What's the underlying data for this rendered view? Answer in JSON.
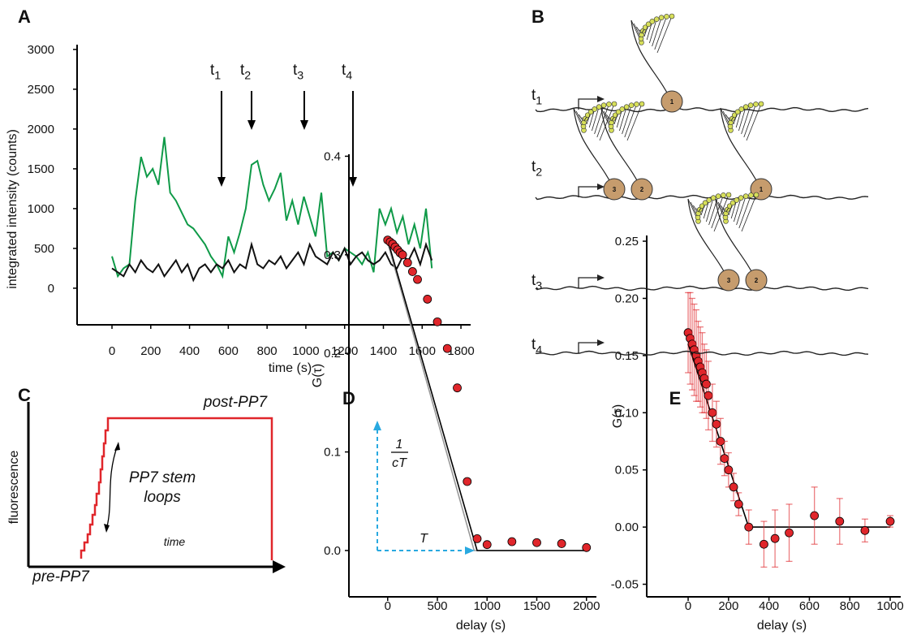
{
  "chart_data": [
    {
      "type": "line",
      "panel": "A",
      "x_label": "time (s)",
      "y_label": "integrated intensity (counts)",
      "xlim": [
        -180,
        1850
      ],
      "ylim": [
        -460,
        3060
      ],
      "xticks": [
        0,
        200,
        400,
        600,
        800,
        1000,
        1200,
        1400,
        1600,
        1800
      ],
      "yticks": [
        0,
        500,
        1000,
        1500,
        2000,
        2500,
        3000
      ],
      "x": [
        0,
        30,
        60,
        90,
        120,
        150,
        180,
        210,
        240,
        270,
        300,
        330,
        360,
        390,
        420,
        450,
        480,
        510,
        540,
        570,
        600,
        630,
        660,
        690,
        720,
        750,
        780,
        810,
        840,
        870,
        900,
        930,
        960,
        990,
        1020,
        1050,
        1080,
        1110,
        1140,
        1170,
        1200,
        1230,
        1260,
        1290,
        1320,
        1350,
        1380,
        1410,
        1440,
        1470,
        1500,
        1530,
        1560,
        1590,
        1620,
        1650
      ],
      "series": [
        {
          "color": "#0f9a48",
          "values": [
            400,
            150,
            250,
            300,
            1100,
            1650,
            1400,
            1500,
            1300,
            1900,
            1200,
            1100,
            950,
            800,
            750,
            650,
            550,
            400,
            300,
            150,
            650,
            450,
            700,
            1000,
            1550,
            1600,
            1300,
            1100,
            1250,
            1450,
            850,
            1100,
            800,
            1150,
            900,
            650,
            1200,
            400,
            450,
            350,
            500,
            450,
            400,
            300,
            450,
            200,
            1000,
            800,
            1000,
            700,
            900,
            550,
            800,
            500,
            1000,
            250
          ]
        },
        {
          "color": "#111111",
          "values": [
            250,
            200,
            150,
            300,
            200,
            350,
            250,
            200,
            300,
            150,
            250,
            350,
            200,
            300,
            100,
            250,
            300,
            200,
            300,
            250,
            350,
            200,
            300,
            250,
            550,
            300,
            250,
            350,
            300,
            400,
            250,
            350,
            450,
            300,
            550,
            400,
            350,
            300,
            450,
            350,
            500,
            300,
            400,
            450,
            350,
            300,
            350,
            450,
            300,
            250,
            400,
            350,
            500,
            300,
            550,
            350
          ]
        }
      ],
      "arrows": [
        {
          "label": "t",
          "subscript": "1",
          "x": 565
        },
        {
          "label": "t",
          "subscript": "2",
          "x": 720
        },
        {
          "label": "t",
          "subscript": "3",
          "x": 992
        },
        {
          "label": "t",
          "subscript": "4",
          "x": 1243
        }
      ]
    },
    {
      "type": "scatter",
      "panel": "D",
      "x_label": "delay (s)",
      "y_label": "G(τ)",
      "xlim": [
        -390,
        2100
      ],
      "ylim": [
        -0.047,
        0.402
      ],
      "xticks": [
        0,
        500,
        1000,
        1500,
        2000
      ],
      "yticks": [
        {
          "value": 0,
          "label": "0.0"
        },
        0.1,
        0.2,
        0.3,
        0.4
      ],
      "series": [
        {
          "mode": "lines",
          "color": "#999999",
          "x": [
            0,
            870,
            2000
          ],
          "values": [
            0.312,
            0,
            0
          ]
        },
        {
          "mode": "lines",
          "color": "#000000",
          "x": [
            0,
            900,
            2000
          ],
          "values": [
            0.315,
            0,
            0
          ]
        },
        {
          "mode": "markers",
          "color": "#e0262b",
          "x": [
            0,
            25,
            50,
            75,
            100,
            125,
            150,
            200,
            250,
            300,
            400,
            500,
            600,
            700,
            800,
            900,
            1000,
            1250,
            1500,
            1750,
            2000
          ],
          "values": [
            0.315,
            0.313,
            0.311,
            0.308,
            0.305,
            0.302,
            0.3,
            0.292,
            0.283,
            0.275,
            0.255,
            0.232,
            0.205,
            0.165,
            0.07,
            0.012,
            0.006,
            0.009,
            0.008,
            0.007,
            0.003
          ]
        }
      ],
      "annotations": {
        "slope_numerator": "1",
        "slope_denominator": "cT",
        "run": "T"
      }
    },
    {
      "type": "scatter",
      "panel": "E",
      "x_label": "delay (s)",
      "y_label": "G(τ)",
      "xlim": [
        -205,
        1052
      ],
      "ylim": [
        -0.061,
        0.255
      ],
      "xticks": [
        0,
        200,
        400,
        600,
        800,
        1000
      ],
      "yticks": [
        {
          "value": -0.05,
          "label": "-0.05"
        },
        {
          "value": 0,
          "label": "0.00"
        },
        0.05,
        {
          "value": 0.1,
          "label": "0.10"
        },
        0.15,
        {
          "value": 0.2,
          "label": "0.20"
        },
        0.25
      ],
      "series": [
        {
          "mode": "lines",
          "color": "#000000",
          "x": [
            0,
            300,
            1000
          ],
          "values": [
            0.16,
            0,
            0
          ]
        },
        {
          "mode": "markers",
          "color": "#e0262b",
          "x": [
            0,
            10,
            20,
            30,
            40,
            50,
            60,
            70,
            80,
            90,
            100,
            120,
            140,
            160,
            180,
            200,
            225,
            250,
            300,
            375,
            430,
            500,
            625,
            750,
            875,
            1000
          ],
          "values": [
            0.17,
            0.165,
            0.16,
            0.155,
            0.15,
            0.145,
            0.14,
            0.135,
            0.13,
            0.125,
            0.115,
            0.1,
            0.09,
            0.075,
            0.06,
            0.05,
            0.035,
            0.02,
            0.0,
            -0.015,
            -0.01,
            -0.005,
            0.01,
            0.005,
            -0.003,
            0.005
          ],
          "errors": [
            0.035,
            0.04,
            0.04,
            0.04,
            0.04,
            0.035,
            0.035,
            0.035,
            0.03,
            0.03,
            0.03,
            0.025,
            0.02,
            0.02,
            0.015,
            0.015,
            0.012,
            0.01,
            0.015,
            0.02,
            0.025,
            0.025,
            0.025,
            0.02,
            0.01,
            0.005
          ]
        }
      ]
    }
  ],
  "panel_b": {
    "letter": "B",
    "rows": [
      {
        "label": "t",
        "subscript": "1",
        "ribosomes": [
          "1"
        ]
      },
      {
        "label": "t",
        "subscript": "2",
        "ribosomes": [
          "3",
          "2",
          "1"
        ]
      },
      {
        "label": "t",
        "subscript": "3",
        "ribosomes": [
          "3",
          "2"
        ]
      },
      {
        "label": "t",
        "subscript": "4",
        "ribosomes": []
      }
    ]
  },
  "panel_c": {
    "letter": "C",
    "y_label": "fluorescence",
    "x_label": "time",
    "start_label": "pre-PP7",
    "end_label": "post-PP7",
    "annotation": [
      "PP7 stem",
      "loops"
    ]
  }
}
